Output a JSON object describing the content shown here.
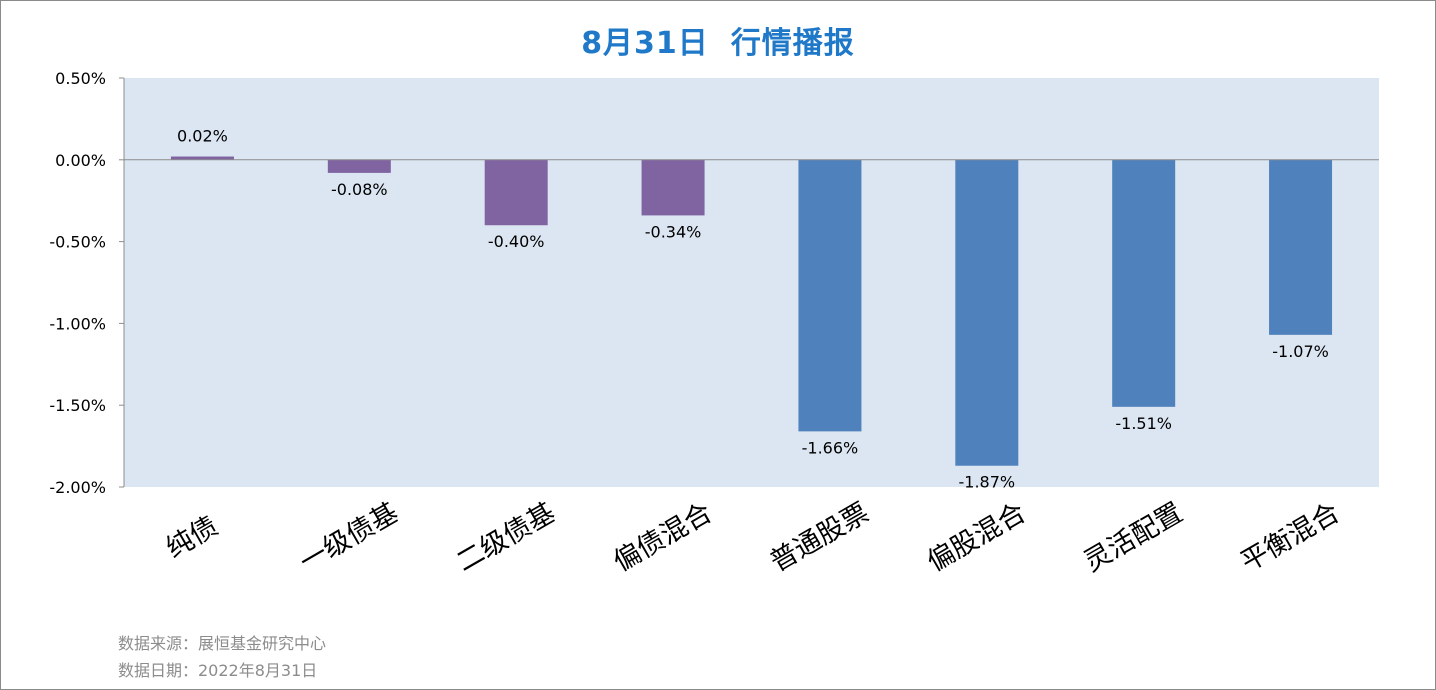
{
  "title": {
    "date": "8月31日",
    "text": "行情播报"
  },
  "chart_data": {
    "type": "bar",
    "categories": [
      "纯债",
      "一级债基",
      "二级债基",
      "偏债混合",
      "普通股票",
      "偏股混合",
      "灵活配置",
      "平衡混合"
    ],
    "values": [
      0.02,
      -0.08,
      -0.4,
      -0.34,
      -1.66,
      -1.87,
      -1.51,
      -1.07
    ],
    "data_labels": [
      "0.02%",
      "-0.08%",
      "-0.40%",
      "-0.34%",
      "-1.66%",
      "-1.87%",
      "-1.51%",
      "-1.07%"
    ],
    "bar_colors": [
      "#8064a2",
      "#8064a2",
      "#8064a2",
      "#8064a2",
      "#4f81bd",
      "#4f81bd",
      "#4f81bd",
      "#4f81bd"
    ],
    "yticks": [
      0.5,
      0.0,
      -0.5,
      -1.0,
      -1.5,
      -2.0
    ],
    "ytick_labels": [
      "0.50%",
      "0.00%",
      "-0.50%",
      "-1.00%",
      "-1.50%",
      "-2.00%"
    ],
    "ylim": [
      -2.0,
      0.5
    ],
    "plot_background": "#dce6f2",
    "xlabel": "",
    "ylabel": "",
    "grid": false,
    "legend": "none"
  },
  "footer": {
    "source": "数据来源：展恒基金研究中心",
    "date": "数据日期：2022年8月31日"
  }
}
